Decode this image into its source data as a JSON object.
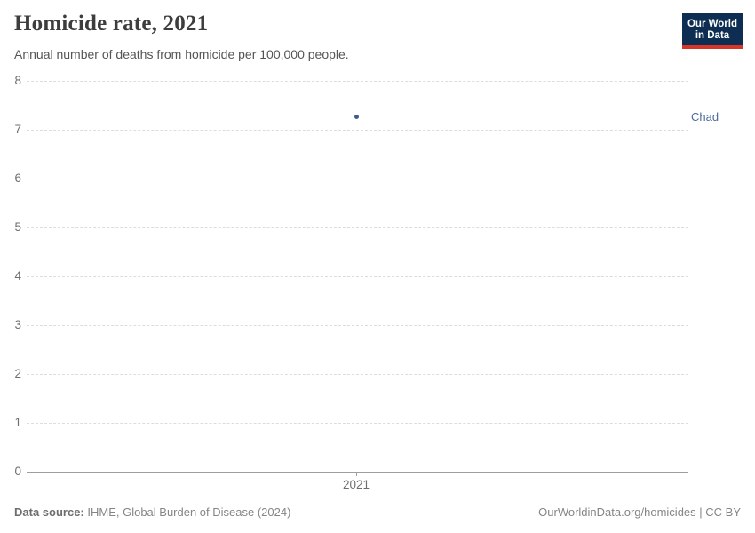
{
  "header": {
    "title": "Homicide rate, 2021",
    "subtitle": "Annual number of deaths from homicide per 100,000 people.",
    "logo": {
      "line1": "Our World",
      "line2": "in Data",
      "bg_color": "#0d2d52",
      "stripe_color": "#d8352a"
    }
  },
  "chart_data": {
    "type": "scatter",
    "title": "Homicide rate, 2021",
    "xlabel": "",
    "ylabel": "",
    "x": [
      2021
    ],
    "xticks": [
      "2021"
    ],
    "series": [
      {
        "name": "Chad",
        "values": [
          7.27
        ],
        "point_color": "#3e5c8f",
        "label_color": "#4c6a9c"
      }
    ],
    "ylim": [
      0,
      8
    ],
    "yticks": [
      0,
      1,
      2,
      3,
      4,
      5,
      6,
      7,
      8
    ],
    "grid": "horizontal-dashed",
    "legend_position": "right-of-plot"
  },
  "footer": {
    "source_label": "Data source:",
    "source_text": " IHME, Global Burden of Disease (2024)",
    "credit": "OurWorldinData.org/homicides | CC BY"
  }
}
